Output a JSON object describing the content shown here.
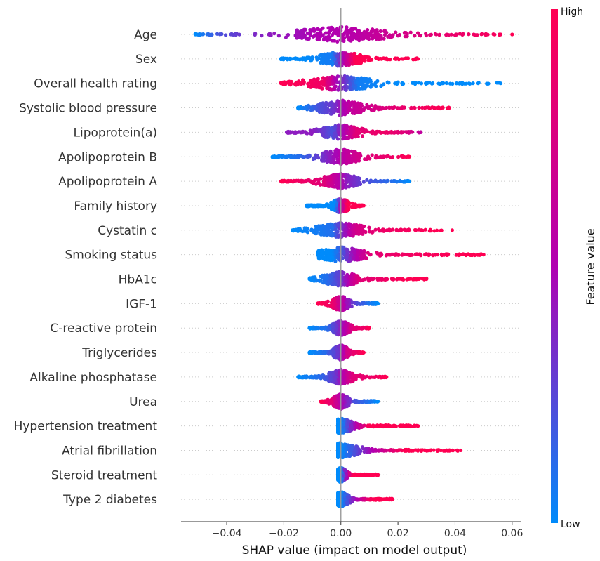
{
  "chart_data": {
    "type": "scatter",
    "subtype": "shap-beeswarm",
    "xlabel": "SHAP value (impact on model output)",
    "xlim": [
      -0.056,
      0.063
    ],
    "xticks": [
      -0.04,
      -0.02,
      0.0,
      0.02,
      0.04,
      0.06
    ],
    "xtick_labels": [
      "−0.04",
      "−0.02",
      "0.00",
      "0.02",
      "0.04",
      "0.06"
    ],
    "colorbar": {
      "title": "Feature value",
      "high_label": "High",
      "low_label": "Low",
      "low_color": "#008bfb",
      "mid_color": "#b100b1",
      "high_color": "#ff0052"
    },
    "features": [
      {
        "name": "Age",
        "min": -0.051,
        "max": 0.06,
        "points": [
          [
            -0.051,
            0.0
          ],
          [
            -0.043,
            0.2
          ],
          [
            -0.035,
            0.3
          ],
          [
            -0.025,
            0.4
          ],
          [
            -0.015,
            0.45
          ],
          [
            -0.008,
            0.5
          ],
          [
            -0.003,
            0.5
          ],
          [
            0.005,
            0.55
          ],
          [
            0.015,
            0.65
          ],
          [
            0.025,
            0.75
          ],
          [
            0.035,
            0.85
          ],
          [
            0.045,
            0.9
          ],
          [
            0.055,
            0.95
          ],
          [
            0.06,
            1.0
          ]
        ]
      },
      {
        "name": "Sex",
        "min": -0.021,
        "max": 0.027,
        "points": [
          [
            -0.021,
            0.0
          ],
          [
            -0.012,
            0.0
          ],
          [
            -0.005,
            0.05
          ],
          [
            -0.003,
            0.05
          ],
          [
            0.005,
            1.0
          ],
          [
            0.012,
            1.0
          ],
          [
            0.02,
            1.0
          ],
          [
            0.027,
            1.0
          ]
        ]
      },
      {
        "name": "Overall health rating",
        "min": -0.021,
        "max": 0.056,
        "points": [
          [
            -0.021,
            1.0
          ],
          [
            -0.012,
            0.95
          ],
          [
            -0.006,
            0.9
          ],
          [
            -0.002,
            0.5
          ],
          [
            0.006,
            0.05
          ],
          [
            0.02,
            0.0
          ],
          [
            0.035,
            0.0
          ],
          [
            0.045,
            0.0
          ],
          [
            0.056,
            0.0
          ]
        ]
      },
      {
        "name": "Systolic blood pressure",
        "min": -0.015,
        "max": 0.038,
        "points": [
          [
            -0.015,
            0.0
          ],
          [
            -0.008,
            0.2
          ],
          [
            -0.003,
            0.3
          ],
          [
            0.003,
            0.6
          ],
          [
            0.01,
            0.7
          ],
          [
            0.02,
            0.85
          ],
          [
            0.03,
            0.95
          ],
          [
            0.038,
            1.0
          ]
        ]
      },
      {
        "name": "Lipoprotein(a)",
        "min": -0.019,
        "max": 0.028,
        "points": [
          [
            -0.019,
            0.4
          ],
          [
            -0.01,
            0.4
          ],
          [
            -0.003,
            0.2
          ],
          [
            0.005,
            0.8
          ],
          [
            0.015,
            0.9
          ],
          [
            0.022,
            0.8
          ],
          [
            0.028,
            0.6
          ]
        ]
      },
      {
        "name": "Apolipoprotein B",
        "min": -0.024,
        "max": 0.024,
        "points": [
          [
            -0.024,
            0.0
          ],
          [
            -0.015,
            0.1
          ],
          [
            -0.007,
            0.3
          ],
          [
            0.002,
            0.6
          ],
          [
            0.01,
            0.8
          ],
          [
            0.018,
            0.9
          ],
          [
            0.024,
            1.0
          ]
        ]
      },
      {
        "name": "Apolipoprotein A",
        "min": -0.021,
        "max": 0.024,
        "points": [
          [
            -0.021,
            1.0
          ],
          [
            -0.014,
            0.9
          ],
          [
            -0.006,
            0.8
          ],
          [
            0.002,
            0.4
          ],
          [
            0.01,
            0.2
          ],
          [
            0.018,
            0.1
          ],
          [
            0.024,
            0.0
          ]
        ]
      },
      {
        "name": "Family history",
        "min": -0.012,
        "max": 0.008,
        "points": [
          [
            -0.012,
            0.0
          ],
          [
            -0.006,
            0.0
          ],
          [
            -0.002,
            0.0
          ],
          [
            0.002,
            1.0
          ],
          [
            0.005,
            1.0
          ],
          [
            0.008,
            1.0
          ]
        ]
      },
      {
        "name": "Cystatin c",
        "min": -0.017,
        "max": 0.039,
        "points": [
          [
            -0.017,
            0.0
          ],
          [
            -0.009,
            0.05
          ],
          [
            -0.003,
            0.1
          ],
          [
            0.005,
            0.7
          ],
          [
            0.015,
            0.9
          ],
          [
            0.025,
            0.95
          ],
          [
            0.033,
            1.0
          ],
          [
            0.039,
            1.0
          ]
        ]
      },
      {
        "name": "Smoking status",
        "min": -0.008,
        "max": 0.05,
        "points": [
          [
            -0.008,
            0.0
          ],
          [
            -0.003,
            0.0
          ],
          [
            0.002,
            0.3
          ],
          [
            0.01,
            0.8
          ],
          [
            0.02,
            0.9
          ],
          [
            0.03,
            0.95
          ],
          [
            0.044,
            1.0
          ],
          [
            0.05,
            1.0
          ]
        ]
      },
      {
        "name": "HbA1c",
        "min": -0.011,
        "max": 0.03,
        "points": [
          [
            -0.011,
            0.0
          ],
          [
            -0.005,
            0.1
          ],
          [
            0.0,
            0.3
          ],
          [
            0.006,
            0.8
          ],
          [
            0.015,
            0.9
          ],
          [
            0.023,
            1.0
          ],
          [
            0.03,
            1.0
          ]
        ]
      },
      {
        "name": "IGF-1",
        "min": -0.008,
        "max": 0.013,
        "points": [
          [
            -0.008,
            1.0
          ],
          [
            -0.003,
            0.9
          ],
          [
            0.0,
            0.6
          ],
          [
            0.004,
            0.3
          ],
          [
            0.009,
            0.1
          ],
          [
            0.013,
            0.0
          ]
        ]
      },
      {
        "name": "C-reactive protein",
        "min": -0.011,
        "max": 0.01,
        "points": [
          [
            -0.011,
            0.0
          ],
          [
            -0.005,
            0.1
          ],
          [
            0.0,
            0.4
          ],
          [
            0.004,
            0.8
          ],
          [
            0.008,
            0.9
          ],
          [
            0.01,
            1.0
          ]
        ]
      },
      {
        "name": "Triglycerides",
        "min": -0.011,
        "max": 0.008,
        "points": [
          [
            -0.011,
            0.0
          ],
          [
            -0.006,
            0.1
          ],
          [
            -0.001,
            0.3
          ],
          [
            0.003,
            0.8
          ],
          [
            0.008,
            1.0
          ]
        ]
      },
      {
        "name": "Alkaline phosphatase",
        "min": -0.015,
        "max": 0.016,
        "points": [
          [
            -0.015,
            0.0
          ],
          [
            -0.008,
            0.1
          ],
          [
            -0.002,
            0.3
          ],
          [
            0.004,
            0.8
          ],
          [
            0.011,
            0.9
          ],
          [
            0.016,
            1.0
          ]
        ]
      },
      {
        "name": "Urea",
        "min": -0.007,
        "max": 0.013,
        "points": [
          [
            -0.007,
            1.0
          ],
          [
            -0.003,
            0.8
          ],
          [
            0.0,
            0.5
          ],
          [
            0.005,
            0.2
          ],
          [
            0.009,
            0.1
          ],
          [
            0.013,
            0.0
          ]
        ]
      },
      {
        "name": "Hypertension treatment",
        "min": -0.001,
        "max": 0.027,
        "points": [
          [
            -0.001,
            0.0
          ],
          [
            0.0,
            0.0
          ],
          [
            0.01,
            1.0
          ],
          [
            0.018,
            1.0
          ],
          [
            0.027,
            1.0
          ]
        ]
      },
      {
        "name": "Atrial fibrillation",
        "min": -0.001,
        "max": 0.042,
        "points": [
          [
            -0.001,
            0.0
          ],
          [
            0.0,
            0.0
          ],
          [
            0.022,
            1.0
          ],
          [
            0.038,
            1.0
          ],
          [
            0.042,
            1.0
          ]
        ]
      },
      {
        "name": "Steroid treatment",
        "min": -0.001,
        "max": 0.013,
        "points": [
          [
            -0.001,
            0.0
          ],
          [
            0.0,
            0.0
          ],
          [
            0.004,
            1.0
          ],
          [
            0.009,
            1.0
          ],
          [
            0.013,
            1.0
          ]
        ]
      },
      {
        "name": "Type 2 diabetes",
        "min": -0.001,
        "max": 0.018,
        "points": [
          [
            -0.001,
            0.0
          ],
          [
            0.0,
            0.0
          ],
          [
            0.011,
            1.0
          ],
          [
            0.014,
            1.0
          ],
          [
            0.018,
            1.0
          ]
        ]
      }
    ]
  }
}
